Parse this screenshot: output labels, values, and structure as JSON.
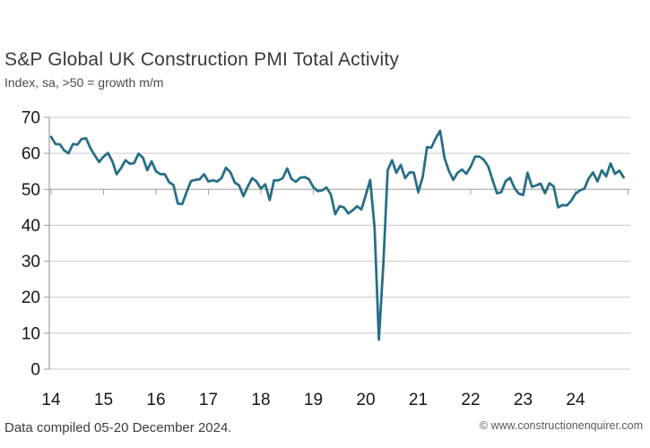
{
  "header": {
    "title": "S&P Global UK Construction PMI Total Activity",
    "subtitle": "Index, sa, >50 = growth m/m"
  },
  "footer": {
    "note": "Data compiled 05-20 December 2024.",
    "copyright": "© www.constructionenquirer.com"
  },
  "chart_data": {
    "type": "line",
    "title": "S&P Global UK Construction PMI Total Activity",
    "subtitle": "Index, sa, >50 = growth m/m",
    "frequency": "monthly",
    "x_start": "2014-01",
    "x_end": "2024-12",
    "x_tick_labels": [
      "14",
      "15",
      "16",
      "17",
      "18",
      "19",
      "20",
      "21",
      "22",
      "23",
      "24"
    ],
    "y_ticks": [
      0,
      10,
      20,
      30,
      40,
      50,
      60,
      70
    ],
    "ylim": [
      0,
      70
    ],
    "reference_line": 50,
    "grid": true,
    "legend": false,
    "series": [
      {
        "name": "UK Construction PMI Total Activity Index",
        "values": [
          64.6,
          62.6,
          62.5,
          60.8,
          60.0,
          62.6,
          62.4,
          64.0,
          64.2,
          61.4,
          59.4,
          57.6,
          59.1,
          60.1,
          57.8,
          54.2,
          55.9,
          58.1,
          57.1,
          57.3,
          59.9,
          58.8,
          55.3,
          57.8,
          55.0,
          54.2,
          54.2,
          52.0,
          51.2,
          46.0,
          45.9,
          49.2,
          52.3,
          52.6,
          52.8,
          54.2,
          52.2,
          52.5,
          52.2,
          53.1,
          56.0,
          54.8,
          51.9,
          51.1,
          48.1,
          50.8,
          53.1,
          52.2,
          50.2,
          51.4,
          47.0,
          52.5,
          52.5,
          53.1,
          55.8,
          52.9,
          52.1,
          53.2,
          53.4,
          52.8,
          50.6,
          49.5,
          49.7,
          50.5,
          48.6,
          43.1,
          45.3,
          45.0,
          43.3,
          44.2,
          45.3,
          44.4,
          48.4,
          52.6,
          39.3,
          8.2,
          28.9,
          55.3,
          58.1,
          54.6,
          56.8,
          53.1,
          54.7,
          54.6,
          49.2,
          53.3,
          61.7,
          61.6,
          64.2,
          66.3,
          58.7,
          55.2,
          52.6,
          54.6,
          55.5,
          54.3,
          56.3,
          59.1,
          59.1,
          58.2,
          56.4,
          52.6,
          48.9,
          49.2,
          52.3,
          53.2,
          50.4,
          48.8,
          48.4,
          54.6,
          50.7,
          51.1,
          51.6,
          48.9,
          51.7,
          50.8,
          45.0,
          45.6,
          45.5,
          46.8,
          48.8,
          49.7,
          50.2,
          53.0,
          54.7,
          52.2,
          55.3,
          53.6,
          57.2,
          54.3,
          55.2,
          53.3
        ]
      }
    ],
    "colors": {
      "line": "#266e87",
      "grid": "#c9c9c9",
      "axis": "#9e9e9e",
      "tick_label": "#161616"
    }
  }
}
